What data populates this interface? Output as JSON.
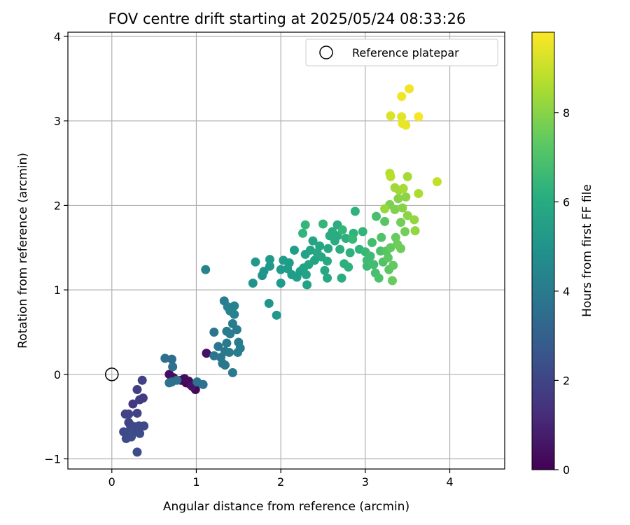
{
  "chart_data": {
    "type": "scatter",
    "title": "FOV centre drift starting at 2025/05/24 08:33:26",
    "xlabel": "Angular distance from reference (arcmin)",
    "ylabel": "Rotation from reference (arcmin)",
    "xlim": [
      -0.52,
      4.65
    ],
    "ylim": [
      -1.12,
      4.05
    ],
    "xticks": [
      "0",
      "1",
      "2",
      "3",
      "4"
    ],
    "yticks": [
      "−1",
      "0",
      "1",
      "2",
      "3",
      "4"
    ],
    "grid": true,
    "legend": {
      "placement": "top-right",
      "entries": [
        "Reference platepar"
      ]
    },
    "reference_point": {
      "x": 0,
      "y": 0
    },
    "colorbar": {
      "label": "Hours from first FF file",
      "range": [
        0,
        9.8
      ],
      "ticks": [
        "0",
        "2",
        "4",
        "6",
        "8"
      ],
      "colormap": "viridis"
    },
    "points": [
      {
        "x": 0.82,
        "y": -0.07,
        "t": 0.05
      },
      {
        "x": 0.88,
        "y": -0.1,
        "t": 0.1
      },
      {
        "x": 0.93,
        "y": -0.12,
        "t": 0.1
      },
      {
        "x": 0.97,
        "y": -0.15,
        "t": 0.15
      },
      {
        "x": 0.99,
        "y": -0.18,
        "t": 0.2
      },
      {
        "x": 0.91,
        "y": -0.08,
        "t": 0.25
      },
      {
        "x": 0.86,
        "y": -0.05,
        "t": 0.3
      },
      {
        "x": 0.68,
        "y": 0.0,
        "t": 0.35
      },
      {
        "x": 0.73,
        "y": -0.04,
        "t": 0.4
      },
      {
        "x": 1.12,
        "y": 0.25,
        "t": 0.45
      },
      {
        "x": 0.95,
        "y": -0.14,
        "t": 0.5
      },
      {
        "x": 0.25,
        "y": -0.35,
        "t": 1.6
      },
      {
        "x": 0.33,
        "y": -0.3,
        "t": 1.7
      },
      {
        "x": 0.37,
        "y": -0.28,
        "t": 1.7
      },
      {
        "x": 0.3,
        "y": -0.18,
        "t": 1.8
      },
      {
        "x": 0.36,
        "y": -0.07,
        "t": 1.9
      },
      {
        "x": 0.16,
        "y": -0.47,
        "t": 1.9
      },
      {
        "x": 0.2,
        "y": -0.47,
        "t": 2.0
      },
      {
        "x": 0.3,
        "y": -0.46,
        "t": 2.0
      },
      {
        "x": 0.2,
        "y": -0.57,
        "t": 2.0
      },
      {
        "x": 0.22,
        "y": -0.6,
        "t": 2.0
      },
      {
        "x": 0.27,
        "y": -0.62,
        "t": 2.1
      },
      {
        "x": 0.32,
        "y": -0.61,
        "t": 2.1
      },
      {
        "x": 0.38,
        "y": -0.61,
        "t": 2.1
      },
      {
        "x": 0.14,
        "y": -0.68,
        "t": 2.1
      },
      {
        "x": 0.19,
        "y": -0.68,
        "t": 2.2
      },
      {
        "x": 0.24,
        "y": -0.7,
        "t": 2.2
      },
      {
        "x": 0.33,
        "y": -0.7,
        "t": 2.2
      },
      {
        "x": 0.17,
        "y": -0.76,
        "t": 2.2
      },
      {
        "x": 0.23,
        "y": -0.74,
        "t": 2.3
      },
      {
        "x": 0.3,
        "y": -0.92,
        "t": 2.3
      },
      {
        "x": 0.63,
        "y": 0.19,
        "t": 3.5
      },
      {
        "x": 0.71,
        "y": 0.18,
        "t": 3.5
      },
      {
        "x": 0.77,
        "y": -0.07,
        "t": 3.6
      },
      {
        "x": 0.72,
        "y": 0.09,
        "t": 3.6
      },
      {
        "x": 0.71,
        "y": -0.09,
        "t": 3.6
      },
      {
        "x": 0.68,
        "y": -0.1,
        "t": 3.7
      },
      {
        "x": 1.08,
        "y": -0.12,
        "t": 3.7
      },
      {
        "x": 1.01,
        "y": -0.09,
        "t": 3.7
      },
      {
        "x": 1.21,
        "y": 0.5,
        "t": 3.8
      },
      {
        "x": 1.21,
        "y": 0.22,
        "t": 3.8
      },
      {
        "x": 1.26,
        "y": 0.33,
        "t": 3.8
      },
      {
        "x": 1.29,
        "y": 0.2,
        "t": 3.9
      },
      {
        "x": 1.31,
        "y": 0.13,
        "t": 3.9
      },
      {
        "x": 1.34,
        "y": 0.11,
        "t": 3.9
      },
      {
        "x": 1.34,
        "y": 0.27,
        "t": 3.9
      },
      {
        "x": 1.36,
        "y": 0.37,
        "t": 4.0
      },
      {
        "x": 1.39,
        "y": 0.26,
        "t": 4.0
      },
      {
        "x": 1.43,
        "y": 0.02,
        "t": 4.0
      },
      {
        "x": 1.36,
        "y": 0.51,
        "t": 4.0
      },
      {
        "x": 1.4,
        "y": 0.48,
        "t": 4.1
      },
      {
        "x": 1.43,
        "y": 0.6,
        "t": 4.1
      },
      {
        "x": 1.48,
        "y": 0.53,
        "t": 4.1
      },
      {
        "x": 1.5,
        "y": 0.38,
        "t": 4.1
      },
      {
        "x": 1.52,
        "y": 0.31,
        "t": 4.2
      },
      {
        "x": 1.49,
        "y": 0.26,
        "t": 4.2
      },
      {
        "x": 1.33,
        "y": 0.87,
        "t": 4.2
      },
      {
        "x": 1.37,
        "y": 0.8,
        "t": 4.3
      },
      {
        "x": 1.4,
        "y": 0.75,
        "t": 4.3
      },
      {
        "x": 1.45,
        "y": 0.81,
        "t": 4.3
      },
      {
        "x": 1.45,
        "y": 0.71,
        "t": 4.4
      },
      {
        "x": 1.11,
        "y": 1.24,
        "t": 4.4
      },
      {
        "x": 1.67,
        "y": 1.08,
        "t": 5.0
      },
      {
        "x": 1.78,
        "y": 1.17,
        "t": 5.0
      },
      {
        "x": 1.8,
        "y": 1.22,
        "t": 5.1
      },
      {
        "x": 1.86,
        "y": 0.84,
        "t": 5.1
      },
      {
        "x": 1.95,
        "y": 0.7,
        "t": 5.2
      },
      {
        "x": 1.7,
        "y": 1.33,
        "t": 5.2
      },
      {
        "x": 1.87,
        "y": 1.28,
        "t": 5.2
      },
      {
        "x": 1.87,
        "y": 1.36,
        "t": 5.3
      },
      {
        "x": 2.0,
        "y": 1.08,
        "t": 5.3
      },
      {
        "x": 2.0,
        "y": 1.24,
        "t": 5.3
      },
      {
        "x": 2.03,
        "y": 1.35,
        "t": 5.4
      },
      {
        "x": 2.08,
        "y": 1.25,
        "t": 5.4
      },
      {
        "x": 2.1,
        "y": 1.32,
        "t": 5.4
      },
      {
        "x": 2.13,
        "y": 1.18,
        "t": 5.4
      },
      {
        "x": 2.16,
        "y": 1.47,
        "t": 5.5
      },
      {
        "x": 2.19,
        "y": 1.15,
        "t": 5.5
      },
      {
        "x": 2.23,
        "y": 1.22,
        "t": 5.5
      },
      {
        "x": 2.27,
        "y": 1.26,
        "t": 5.6
      },
      {
        "x": 2.29,
        "y": 1.42,
        "t": 5.6
      },
      {
        "x": 2.3,
        "y": 1.18,
        "t": 5.6
      },
      {
        "x": 2.31,
        "y": 1.06,
        "t": 5.6
      },
      {
        "x": 2.33,
        "y": 1.3,
        "t": 5.7
      },
      {
        "x": 2.35,
        "y": 1.47,
        "t": 5.7
      },
      {
        "x": 2.38,
        "y": 1.58,
        "t": 5.7
      },
      {
        "x": 2.4,
        "y": 1.35,
        "t": 5.7
      },
      {
        "x": 2.43,
        "y": 1.44,
        "t": 5.8
      },
      {
        "x": 2.46,
        "y": 1.52,
        "t": 5.8
      },
      {
        "x": 2.48,
        "y": 1.39,
        "t": 5.8
      },
      {
        "x": 2.52,
        "y": 1.23,
        "t": 5.9
      },
      {
        "x": 2.55,
        "y": 1.34,
        "t": 5.9
      },
      {
        "x": 2.55,
        "y": 1.14,
        "t": 5.9
      },
      {
        "x": 2.56,
        "y": 1.49,
        "t": 5.9
      },
      {
        "x": 2.58,
        "y": 1.64,
        "t": 6.0
      },
      {
        "x": 2.61,
        "y": 1.69,
        "t": 6.0
      },
      {
        "x": 2.64,
        "y": 1.58,
        "t": 6.0
      },
      {
        "x": 2.67,
        "y": 1.64,
        "t": 6.0
      },
      {
        "x": 2.67,
        "y": 1.77,
        "t": 6.1
      },
      {
        "x": 2.7,
        "y": 1.48,
        "t": 6.1
      },
      {
        "x": 2.72,
        "y": 1.14,
        "t": 6.1
      },
      {
        "x": 2.75,
        "y": 1.31,
        "t": 6.2
      },
      {
        "x": 2.77,
        "y": 1.61,
        "t": 6.2
      },
      {
        "x": 2.8,
        "y": 1.27,
        "t": 6.2
      },
      {
        "x": 2.82,
        "y": 1.44,
        "t": 6.2
      },
      {
        "x": 2.86,
        "y": 1.67,
        "t": 6.3
      },
      {
        "x": 2.88,
        "y": 1.93,
        "t": 6.3
      },
      {
        "x": 2.93,
        "y": 1.48,
        "t": 6.3
      },
      {
        "x": 2.97,
        "y": 1.69,
        "t": 6.4
      },
      {
        "x": 2.26,
        "y": 1.67,
        "t": 6.4
      },
      {
        "x": 2.29,
        "y": 1.77,
        "t": 6.5
      },
      {
        "x": 2.5,
        "y": 1.78,
        "t": 6.5
      },
      {
        "x": 2.73,
        "y": 1.71,
        "t": 6.5
      },
      {
        "x": 2.85,
        "y": 1.6,
        "t": 6.6
      },
      {
        "x": 3.0,
        "y": 1.45,
        "t": 6.6
      },
      {
        "x": 3.02,
        "y": 1.35,
        "t": 6.7
      },
      {
        "x": 3.02,
        "y": 1.28,
        "t": 6.7
      },
      {
        "x": 3.06,
        "y": 1.4,
        "t": 6.7
      },
      {
        "x": 3.08,
        "y": 1.56,
        "t": 6.8
      },
      {
        "x": 3.1,
        "y": 1.3,
        "t": 6.8
      },
      {
        "x": 3.12,
        "y": 1.2,
        "t": 6.9
      },
      {
        "x": 3.13,
        "y": 1.87,
        "t": 6.9
      },
      {
        "x": 3.16,
        "y": 1.14,
        "t": 7.0
      },
      {
        "x": 3.18,
        "y": 1.46,
        "t": 7.0
      },
      {
        "x": 3.19,
        "y": 1.62,
        "t": 7.1
      },
      {
        "x": 3.21,
        "y": 1.33,
        "t": 7.1
      },
      {
        "x": 3.23,
        "y": 1.81,
        "t": 7.2
      },
      {
        "x": 3.25,
        "y": 1.46,
        "t": 7.2
      },
      {
        "x": 3.27,
        "y": 1.38,
        "t": 7.3
      },
      {
        "x": 3.28,
        "y": 1.24,
        "t": 7.3
      },
      {
        "x": 3.3,
        "y": 1.5,
        "t": 7.4
      },
      {
        "x": 3.33,
        "y": 1.29,
        "t": 7.4
      },
      {
        "x": 3.32,
        "y": 1.11,
        "t": 7.5
      },
      {
        "x": 3.36,
        "y": 1.62,
        "t": 7.5
      },
      {
        "x": 3.38,
        "y": 1.54,
        "t": 7.6
      },
      {
        "x": 3.42,
        "y": 1.49,
        "t": 7.6
      },
      {
        "x": 3.47,
        "y": 1.69,
        "t": 7.7
      },
      {
        "x": 3.42,
        "y": 1.8,
        "t": 7.7
      },
      {
        "x": 3.29,
        "y": 2.01,
        "t": 7.8
      },
      {
        "x": 3.35,
        "y": 1.95,
        "t": 7.9
      },
      {
        "x": 3.39,
        "y": 2.08,
        "t": 8.0
      },
      {
        "x": 3.44,
        "y": 1.97,
        "t": 8.0
      },
      {
        "x": 3.48,
        "y": 2.1,
        "t": 8.1
      },
      {
        "x": 3.5,
        "y": 1.88,
        "t": 8.1
      },
      {
        "x": 3.58,
        "y": 1.83,
        "t": 8.2
      },
      {
        "x": 3.59,
        "y": 1.7,
        "t": 8.2
      },
      {
        "x": 3.23,
        "y": 1.96,
        "t": 8.3
      },
      {
        "x": 3.35,
        "y": 2.21,
        "t": 8.4
      },
      {
        "x": 3.4,
        "y": 2.18,
        "t": 8.4
      },
      {
        "x": 3.45,
        "y": 2.2,
        "t": 8.5
      },
      {
        "x": 3.5,
        "y": 2.34,
        "t": 8.5
      },
      {
        "x": 3.63,
        "y": 2.14,
        "t": 8.6
      },
      {
        "x": 3.29,
        "y": 2.38,
        "t": 8.7
      },
      {
        "x": 3.3,
        "y": 2.34,
        "t": 8.8
      },
      {
        "x": 3.85,
        "y": 2.28,
        "t": 8.9
      },
      {
        "x": 3.3,
        "y": 3.06,
        "t": 9.3
      },
      {
        "x": 3.43,
        "y": 3.05,
        "t": 9.4
      },
      {
        "x": 3.44,
        "y": 2.97,
        "t": 9.5
      },
      {
        "x": 3.48,
        "y": 2.95,
        "t": 9.5
      },
      {
        "x": 3.52,
        "y": 3.38,
        "t": 9.6
      },
      {
        "x": 3.43,
        "y": 3.29,
        "t": 9.6
      },
      {
        "x": 3.63,
        "y": 3.05,
        "t": 9.7
      }
    ]
  }
}
